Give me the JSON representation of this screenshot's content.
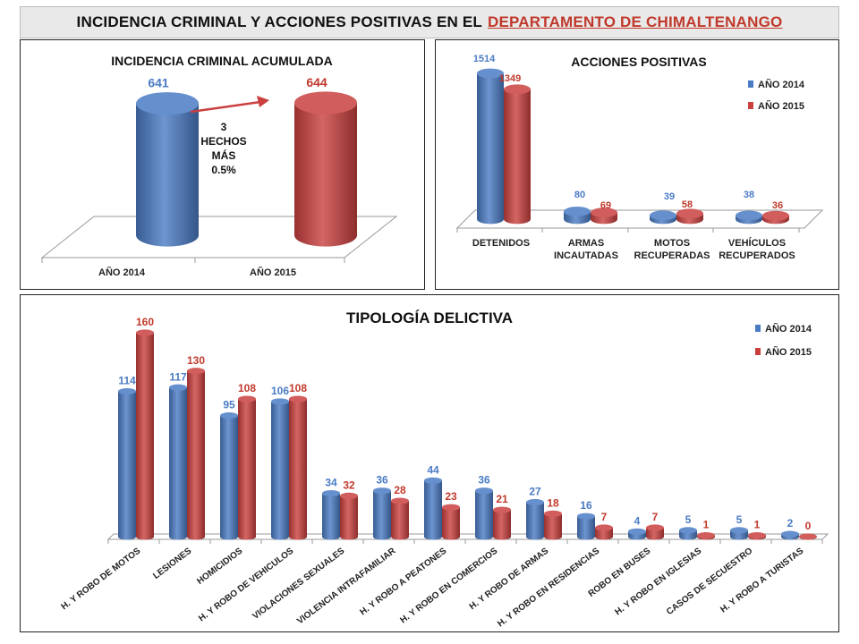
{
  "header": {
    "title_prefix": "INCIDENCIA CRIMINAL Y ACCIONES POSITIVAS EN EL",
    "title_highlight": "DEPARTAMENTO DE CHIMALTENANGO"
  },
  "colors": {
    "y2014": "#4a7bc4",
    "y2015": "#c9403f",
    "text_blue": "#4a7bc4",
    "text_red": "#c0392b"
  },
  "chart_data": [
    {
      "id": "acumulada",
      "type": "bar",
      "title": "INCIDENCIA CRIMINAL ACUMULADA",
      "categories": [
        "AÑO 2014",
        "AÑO 2015"
      ],
      "values": [
        641,
        644
      ],
      "annotation": [
        "3",
        "HECHOS",
        "MÁS",
        "0.5%"
      ]
    },
    {
      "id": "acciones",
      "type": "bar",
      "title": "ACCIONES POSITIVAS",
      "categories": [
        [
          "DETENIDOS"
        ],
        [
          "ARMAS",
          "INCAUTADAS"
        ],
        [
          "MOTOS",
          "RECUPERADAS"
        ],
        [
          "VEHÍCULOS",
          "RECUPERADOS"
        ]
      ],
      "series": [
        {
          "name": "AÑO 2014",
          "values": [
            1514,
            80,
            39,
            38
          ]
        },
        {
          "name": "AÑO 2015",
          "values": [
            1349,
            69,
            58,
            36
          ]
        }
      ],
      "legend": "top-right"
    },
    {
      "id": "tipologia",
      "type": "bar",
      "title": "TIPOLOGÍA DELICTIVA",
      "categories": [
        "H. Y ROBO DE MOTOS",
        "LESIONES",
        "HOMICIDIOS",
        "H. Y ROBO DE VEHICULOS",
        "VIOLACIONES SEXUALES",
        "VIOLENCIA INTRAFAMILIAR",
        "H. Y ROBO A PEATONES",
        "H. Y ROBO EN COMERCIOS",
        "H. Y ROBO DE ARMAS",
        "H. Y ROBO EN RESIDENCIAS",
        "ROBO EN BUSES",
        "H. Y ROBO EN IGLESIAS",
        "CASOS DE SECUESTRO",
        "H. Y ROBO A TURISTAS"
      ],
      "series": [
        {
          "name": "AÑO 2014",
          "values": [
            114,
            117,
            95,
            106,
            34,
            36,
            44,
            36,
            27,
            16,
            4,
            5,
            5,
            2
          ]
        },
        {
          "name": "AÑO 2015",
          "values": [
            160,
            130,
            108,
            108,
            32,
            28,
            23,
            21,
            18,
            7,
            7,
            1,
            1,
            0
          ]
        }
      ],
      "legend": "top-right"
    }
  ]
}
